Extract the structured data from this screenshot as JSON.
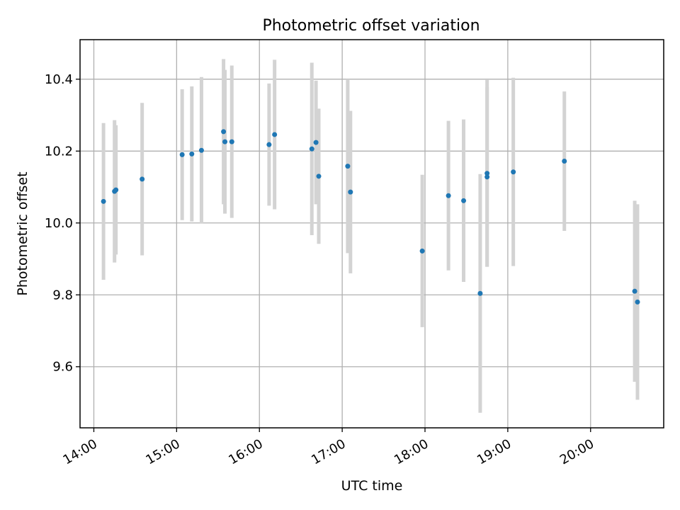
{
  "chart_data": {
    "type": "scatter",
    "title": "Photometric offset variation",
    "xlabel": "UTC time",
    "ylabel": "Photometric offset",
    "x_ticks": [
      "14:00",
      "15:00",
      "16:00",
      "17:00",
      "18:00",
      "19:00",
      "20:00"
    ],
    "y_ticks": [
      "9.6",
      "9.8",
      "10.0",
      "10.2",
      "10.4"
    ],
    "xlim": [
      "13:50",
      "20:53"
    ],
    "ylim": [
      9.43,
      10.51
    ],
    "grid": true,
    "colors": {
      "point": "#1f77b4",
      "errorbar": "#d3d3d3",
      "grid": "#b0b0b0"
    },
    "points": [
      {
        "time": "14:07",
        "y": 10.06,
        "yerr": 0.218
      },
      {
        "time": "14:15",
        "y": 10.088,
        "yerr": 0.198
      },
      {
        "time": "14:16",
        "y": 10.092,
        "yerr": 0.18
      },
      {
        "time": "14:35",
        "y": 10.122,
        "yerr": 0.212
      },
      {
        "time": "15:04",
        "y": 10.19,
        "yerr": 0.182
      },
      {
        "time": "15:11",
        "y": 10.192,
        "yerr": 0.188
      },
      {
        "time": "15:18",
        "y": 10.202,
        "yerr": 0.204
      },
      {
        "time": "15:34",
        "y": 10.254,
        "yerr": 0.202
      },
      {
        "time": "15:35",
        "y": 10.226,
        "yerr": 0.2
      },
      {
        "time": "15:40",
        "y": 10.226,
        "yerr": 0.212
      },
      {
        "time": "16:07",
        "y": 10.218,
        "yerr": 0.17
      },
      {
        "time": "16:11",
        "y": 10.246,
        "yerr": 0.208
      },
      {
        "time": "16:38",
        "y": 10.206,
        "yerr": 0.24
      },
      {
        "time": "16:41",
        "y": 10.224,
        "yerr": 0.172
      },
      {
        "time": "16:43",
        "y": 10.13,
        "yerr": 0.188
      },
      {
        "time": "17:04",
        "y": 10.158,
        "yerr": 0.242
      },
      {
        "time": "17:06",
        "y": 10.086,
        "yerr": 0.226
      },
      {
        "time": "17:58",
        "y": 9.922,
        "yerr": 0.212
      },
      {
        "time": "18:17",
        "y": 10.076,
        "yerr": 0.208
      },
      {
        "time": "18:28",
        "y": 10.062,
        "yerr": 0.226
      },
      {
        "time": "18:40",
        "y": 9.804,
        "yerr": 0.332
      },
      {
        "time": "18:45",
        "y": 10.138,
        "yerr": 0.26
      },
      {
        "time": "18:45",
        "y": 10.128,
        "yerr": 0.25
      },
      {
        "time": "19:04",
        "y": 10.142,
        "yerr": 0.262
      },
      {
        "time": "19:41",
        "y": 10.172,
        "yerr": 0.194
      },
      {
        "time": "20:32",
        "y": 9.81,
        "yerr": 0.252
      },
      {
        "time": "20:34",
        "y": 9.78,
        "yerr": 0.272
      }
    ]
  }
}
